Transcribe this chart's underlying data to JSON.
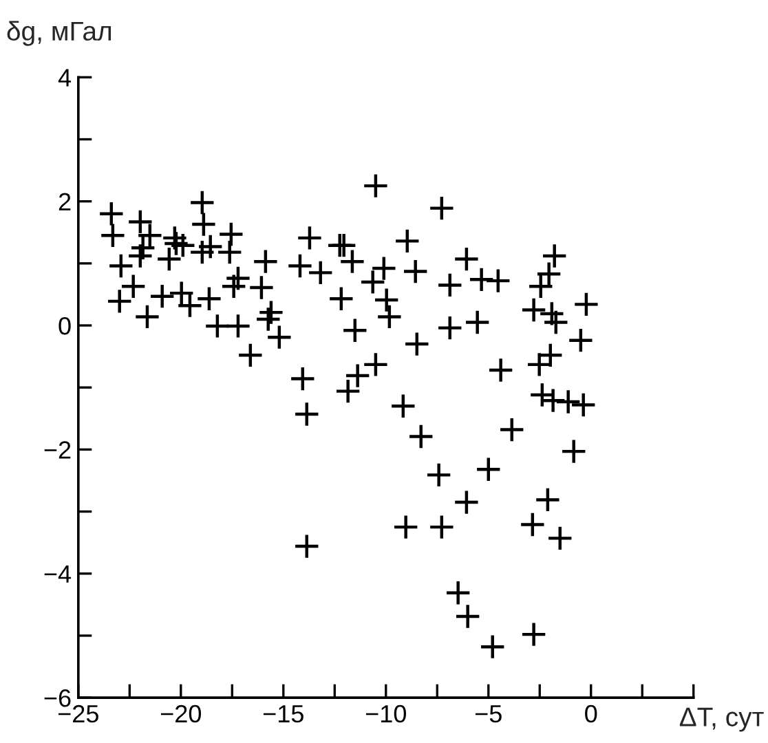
{
  "chart_data": {
    "type": "scatter",
    "xlabel": "ΔT, сут",
    "ylabel": "δg, мГал",
    "xlim": [
      -25,
      5
    ],
    "ylim": [
      -6,
      4
    ],
    "xticks": [
      {
        "value": -25,
        "label": "−25"
      },
      {
        "value": -22.5,
        "label": null
      },
      {
        "value": -20,
        "label": "−20"
      },
      {
        "value": -17.5,
        "label": null
      },
      {
        "value": -15,
        "label": "−15"
      },
      {
        "value": -12.5,
        "label": null
      },
      {
        "value": -10,
        "label": "−10"
      },
      {
        "value": -7.5,
        "label": null
      },
      {
        "value": -5,
        "label": "−5"
      },
      {
        "value": -2.5,
        "label": null
      },
      0,
      {
        "value": 2.5,
        "label": null
      },
      {
        "value": 5,
        "label": null
      }
    ],
    "yticks": [
      {
        "value": -6,
        "label": "−6"
      },
      {
        "value": -5,
        "label": null
      },
      {
        "value": -4,
        "label": "−4"
      },
      {
        "value": -3,
        "label": null
      },
      {
        "value": -2,
        "label": "−2"
      },
      {
        "value": -1,
        "label": null
      },
      0,
      {
        "value": 1,
        "label": null
      },
      2,
      {
        "value": 3,
        "label": null
      },
      4
    ],
    "marker": "cross",
    "grid": false,
    "legend": false,
    "series": [
      {
        "color": "#000000",
        "x": [
          -23.39,
          -21.98,
          -23.32,
          -18.96,
          -18.89,
          -21.51,
          -21.85,
          -20.3,
          -20.23,
          -19.9,
          -18.96,
          -18.56,
          -17.55,
          -17.62,
          -21.98,
          -20.57,
          -22.92,
          -15.87,
          -14.19,
          -13.19,
          -13.72,
          -12.25,
          -22.32,
          -17.21,
          -17.42,
          -16.07,
          -22.99,
          -20.91,
          -19.97,
          -19.56,
          -18.62,
          -21.64,
          -18.22,
          -17.21,
          -15.6,
          -15.74,
          -15.2,
          -16.61,
          -14.06,
          -10.5,
          -7.28,
          -12.05,
          -11.64,
          -8.96,
          -10.1,
          -10.64,
          -8.56,
          -6.07,
          -6.88,
          -5.34,
          -4.53,
          -1.78,
          -2.05,
          -2.45,
          -2.79,
          -1.91,
          -1.71,
          -0.23,
          -0.5,
          -12.18,
          -9.97,
          -9.83,
          -11.51,
          -6.88,
          -5.54,
          -8.49,
          -10.5,
          -11.38,
          -4.4,
          -2.52,
          -1.98,
          -11.85,
          -9.16,
          -8.29,
          -7.42,
          -5.0,
          -3.86,
          -6.07,
          -9.03,
          -7.28,
          -2.38,
          -1.85,
          -1.11,
          -0.37,
          -0.84,
          -2.11,
          -2.85,
          -1.51,
          -6.48,
          -6.01,
          -4.8,
          -2.79,
          -13.86,
          -13.86
        ],
        "values": [
          1.8,
          1.67,
          1.45,
          1.98,
          1.63,
          1.45,
          1.25,
          1.41,
          1.32,
          1.29,
          1.18,
          1.27,
          1.47,
          1.18,
          1.12,
          1.07,
          0.96,
          1.03,
          0.96,
          0.85,
          1.41,
          1.29,
          0.63,
          0.76,
          0.63,
          0.61,
          0.39,
          0.47,
          0.52,
          0.32,
          0.43,
          0.14,
          -0.01,
          -0.01,
          0.21,
          0.1,
          -0.19,
          -0.48,
          -0.86,
          2.25,
          1.89,
          1.29,
          1.03,
          1.36,
          0.92,
          0.7,
          0.87,
          1.07,
          0.65,
          0.74,
          0.72,
          1.12,
          0.83,
          0.63,
          0.25,
          0.19,
          0.05,
          0.34,
          -0.24,
          0.43,
          0.41,
          0.14,
          -0.08,
          -0.04,
          0.05,
          -0.3,
          -0.63,
          -0.81,
          -0.72,
          -0.63,
          -0.48,
          -1.06,
          -1.3,
          -1.79,
          -2.41,
          -2.32,
          -1.68,
          -2.85,
          -3.25,
          -3.25,
          -1.12,
          -1.21,
          -1.23,
          -1.28,
          -2.03,
          -2.81,
          -3.21,
          -3.43,
          -4.31,
          -4.69,
          -5.18,
          -4.98,
          -1.43,
          -3.56
        ]
      }
    ]
  }
}
